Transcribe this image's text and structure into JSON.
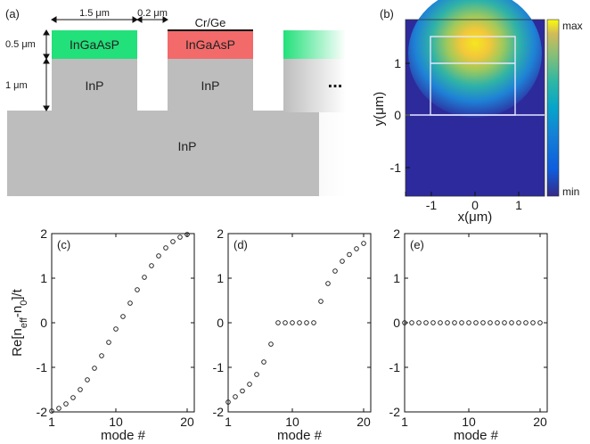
{
  "panel_labels": {
    "a": "(a)",
    "b": "(b)",
    "c": "(c)",
    "d": "(d)",
    "e": "(e)"
  },
  "structure": {
    "width_label": "1.5 μm",
    "gap_label": "0.2 μm",
    "contact_label": "Cr/Ge",
    "layer_thickness_label": "0.5 μm",
    "ridge_height_label": "1 μm",
    "ridge1_top_label": "InGaAsP",
    "ridge2_top_label": "InGaAsP",
    "ridge1_bottom_label": "InP",
    "ridge2_bottom_label": "InP",
    "substrate_label": "InP",
    "ellipsis": "...",
    "colors": {
      "gain": "#22e07a",
      "loss": "#f26a6a",
      "inp": "#bdbdbd"
    }
  },
  "field_map": {
    "xlabel": "x(μm)",
    "ylabel": "y(μm)",
    "x_ticks": [
      "-1",
      "0",
      "1"
    ],
    "y_ticks": [
      "1",
      "0",
      "-1"
    ],
    "colorbar_max": "max",
    "colorbar_min": "min"
  },
  "chart_data": [
    {
      "type": "scatter",
      "panel": "(c)",
      "xlabel": "mode #",
      "ylabel": "Re[n_eff-n_0]/t",
      "xlim": [
        1,
        21
      ],
      "ylim": [
        -2,
        2
      ],
      "x_ticks": [
        1,
        10,
        20
      ],
      "y_ticks": [
        2,
        1,
        0,
        -1,
        -2
      ],
      "x": [
        1,
        2,
        3,
        4,
        5,
        6,
        7,
        8,
        9,
        10,
        11,
        12,
        13,
        14,
        15,
        16,
        17,
        18,
        19,
        20
      ],
      "y": [
        -1.98,
        -1.92,
        -1.82,
        -1.68,
        -1.5,
        -1.28,
        -1.02,
        -0.74,
        -0.44,
        -0.14,
        0.14,
        0.44,
        0.74,
        1.02,
        1.28,
        1.5,
        1.68,
        1.82,
        1.92,
        1.98
      ]
    },
    {
      "type": "scatter",
      "panel": "(d)",
      "xlabel": "mode #",
      "ylabel": "",
      "xlim": [
        1,
        21
      ],
      "ylim": [
        -2,
        2
      ],
      "x_ticks": [
        1,
        10,
        20
      ],
      "y_ticks": [
        2,
        1,
        0,
        -1,
        -2
      ],
      "x": [
        1,
        2,
        3,
        4,
        5,
        6,
        7,
        8,
        9,
        10,
        11,
        12,
        13,
        14,
        15,
        16,
        17,
        18,
        19,
        20
      ],
      "y": [
        -1.78,
        -1.66,
        -1.53,
        -1.38,
        -1.16,
        -0.88,
        -0.48,
        0,
        0,
        0,
        0,
        0,
        0,
        0.48,
        0.88,
        1.16,
        1.38,
        1.53,
        1.66,
        1.78
      ]
    },
    {
      "type": "scatter",
      "panel": "(e)",
      "xlabel": "mode #",
      "ylabel": "",
      "xlim": [
        1,
        21
      ],
      "ylim": [
        -2,
        2
      ],
      "x_ticks": [
        1,
        10,
        20
      ],
      "y_ticks": [
        2,
        1,
        0,
        -1,
        -2
      ],
      "x": [
        1,
        2,
        3,
        4,
        5,
        6,
        7,
        8,
        9,
        10,
        11,
        12,
        13,
        14,
        15,
        16,
        17,
        18,
        19,
        20
      ],
      "y": [
        0,
        0,
        0,
        0,
        0,
        0,
        0,
        0,
        0,
        0,
        0,
        0,
        0,
        0,
        0,
        0,
        0,
        0,
        0,
        0
      ]
    }
  ]
}
